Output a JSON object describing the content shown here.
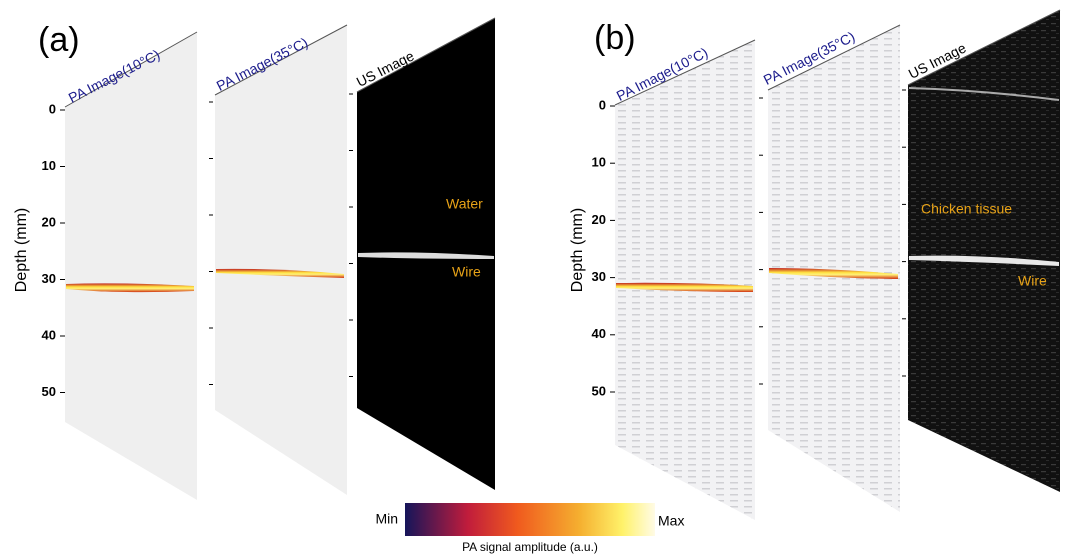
{
  "panels": [
    {
      "label": "(a)",
      "axis_label": "Depth (mm)",
      "ticks": [
        0,
        10,
        20,
        30,
        40,
        50
      ],
      "images": [
        {
          "title": "PA Image(10°C)"
        },
        {
          "title": "PA Image(35°C)"
        },
        {
          "title": "US Image"
        }
      ],
      "annotations": [
        "Water",
        "Wire"
      ]
    },
    {
      "label": "(b)",
      "axis_label": "Depth (mm)",
      "ticks": [
        0,
        10,
        20,
        30,
        40,
        50
      ],
      "images": [
        {
          "title": "PA Image(10°C)"
        },
        {
          "title": "PA Image(35°C)"
        },
        {
          "title": "US Image"
        }
      ],
      "annotations": [
        "Chicken tissue",
        "Wire"
      ]
    }
  ],
  "colorbar": {
    "min_label": "Min",
    "max_label": "Max",
    "caption": "PA signal amplitude (a.u.)"
  }
}
